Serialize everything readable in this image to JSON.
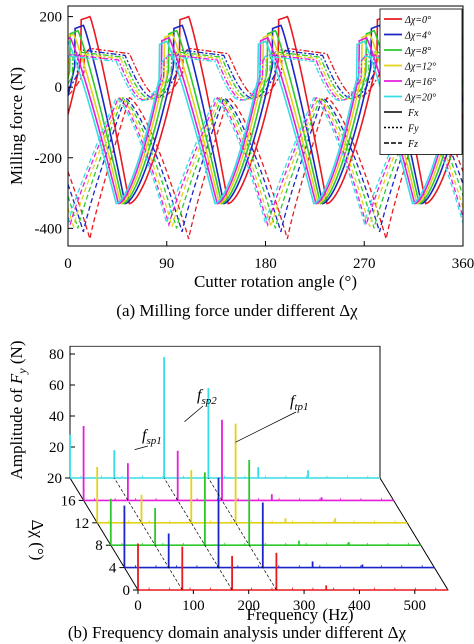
{
  "chart_data": [
    {
      "type": "line",
      "caption": "(a) Milling force under different Δχ",
      "xlabel": "Cutter rotation angle (°)",
      "ylabel": "Milling force (N)",
      "xlim": [
        0,
        360
      ],
      "ylim": [
        -450,
        230
      ],
      "xticks": [
        0,
        90,
        180,
        270,
        360
      ],
      "xtick_labels": [
        "0",
        "90",
        "180",
        "270",
        "360"
      ],
      "yticks": [
        200,
        0,
        -200,
        -400
      ],
      "ytick_labels": [
        "200",
        "0",
        "-200",
        "-400"
      ],
      "grid": false,
      "legend_position": "top-right",
      "series": [
        {
          "name": "Δχ=0°",
          "color": "#e8191f",
          "cut_start": 20,
          "cut_end": 56,
          "fx_peak": 200,
          "fy_peak": -430,
          "fz_peak": 110
        },
        {
          "name": "Δχ=4°",
          "color": "#1a25c8",
          "cut_start": 14,
          "cut_end": 52,
          "fx_peak": 175,
          "fy_peak": -410,
          "fz_peak": 105
        },
        {
          "name": "Δχ=8°",
          "color": "#2cc92c",
          "cut_start": 9,
          "cut_end": 50,
          "fx_peak": 160,
          "fy_peak": -400,
          "fz_peak": 100
        },
        {
          "name": "Δχ=12°",
          "color": "#e3d21a",
          "cut_start": 5,
          "cut_end": 48,
          "fx_peak": 150,
          "fy_peak": -395,
          "fz_peak": 96
        },
        {
          "name": "Δχ=16°",
          "color": "#e61ed8",
          "cut_start": 2,
          "cut_end": 46,
          "fx_peak": 140,
          "fy_peak": -390,
          "fz_peak": 92
        },
        {
          "name": "Δχ=20°",
          "color": "#35dde6",
          "cut_start": 0,
          "cut_end": 44,
          "fx_peak": 130,
          "fy_peak": -385,
          "fz_peak": 88
        }
      ],
      "component_legend": [
        "Fx",
        "Fy",
        "Fz"
      ]
    },
    {
      "type": "bar",
      "caption": "(b) Frequency domain analysis under different Δχ",
      "xlabel": "Frequency (Hz)",
      "ylabel": "Amplitude of Fy (N)",
      "ylabel_main": "Amplitude of ",
      "ylabel_sym": "F",
      "ylabel_sub": "y",
      "ylabel_unit": " (N)",
      "zlabel": "Δχ (°)",
      "xlim": [
        0,
        560
      ],
      "xticks": [
        0,
        100,
        200,
        300,
        400,
        500
      ],
      "xtick_labels": [
        "0",
        "100",
        "200",
        "300",
        "400",
        "500"
      ],
      "yticks": [
        0,
        20,
        40,
        60,
        80
      ],
      "ytick_labels": [
        "0",
        "20",
        "40",
        "60",
        "80"
      ],
      "zticks": [
        0,
        4,
        8,
        12,
        16,
        20
      ],
      "ztick_labels": [
        "0",
        "4",
        "8",
        "12",
        "16",
        "20"
      ],
      "slices": [
        {
          "delta": 0,
          "color": "#e8191f",
          "peaks": [
            [
              0,
              30
            ],
            [
              80,
              28
            ],
            [
              170,
              22
            ],
            [
              250,
              24
            ],
            [
              340,
              3
            ]
          ]
        },
        {
          "delta": 4,
          "color": "#1a25c8",
          "peaks": [
            [
              0,
              40
            ],
            [
              80,
              22
            ],
            [
              170,
              58
            ],
            [
              250,
              42
            ],
            [
              340,
              4
            ],
            [
              430,
              2
            ]
          ]
        },
        {
          "delta": 8,
          "color": "#2cc92c",
          "peaks": [
            [
              0,
              30
            ],
            [
              80,
              24
            ],
            [
              170,
              47
            ],
            [
              250,
              55
            ],
            [
              340,
              3
            ],
            [
              430,
              2
            ]
          ]
        },
        {
          "delta": 12,
          "color": "#e3d21a",
          "peaks": [
            [
              0,
              36
            ],
            [
              80,
              18
            ],
            [
              170,
              34
            ],
            [
              250,
              64
            ],
            [
              340,
              3
            ],
            [
              430,
              3
            ]
          ]
        },
        {
          "delta": 16,
          "color": "#e61ed8",
          "peaks": [
            [
              0,
              48
            ],
            [
              80,
              24
            ],
            [
              170,
              32
            ],
            [
              250,
              52
            ],
            [
              340,
              4
            ],
            [
              430,
              2
            ]
          ]
        },
        {
          "delta": 20,
          "color": "#35dde6",
          "peaks": [
            [
              0,
              28
            ],
            [
              80,
              18
            ],
            [
              170,
              78
            ],
            [
              250,
              58
            ],
            [
              340,
              7
            ],
            [
              430,
              5
            ]
          ]
        }
      ],
      "annotations": [
        {
          "main": "f",
          "sub": "sp1"
        },
        {
          "main": "f",
          "sub": "sp2"
        },
        {
          "main": "f",
          "sub": "tp1"
        }
      ]
    }
  ]
}
